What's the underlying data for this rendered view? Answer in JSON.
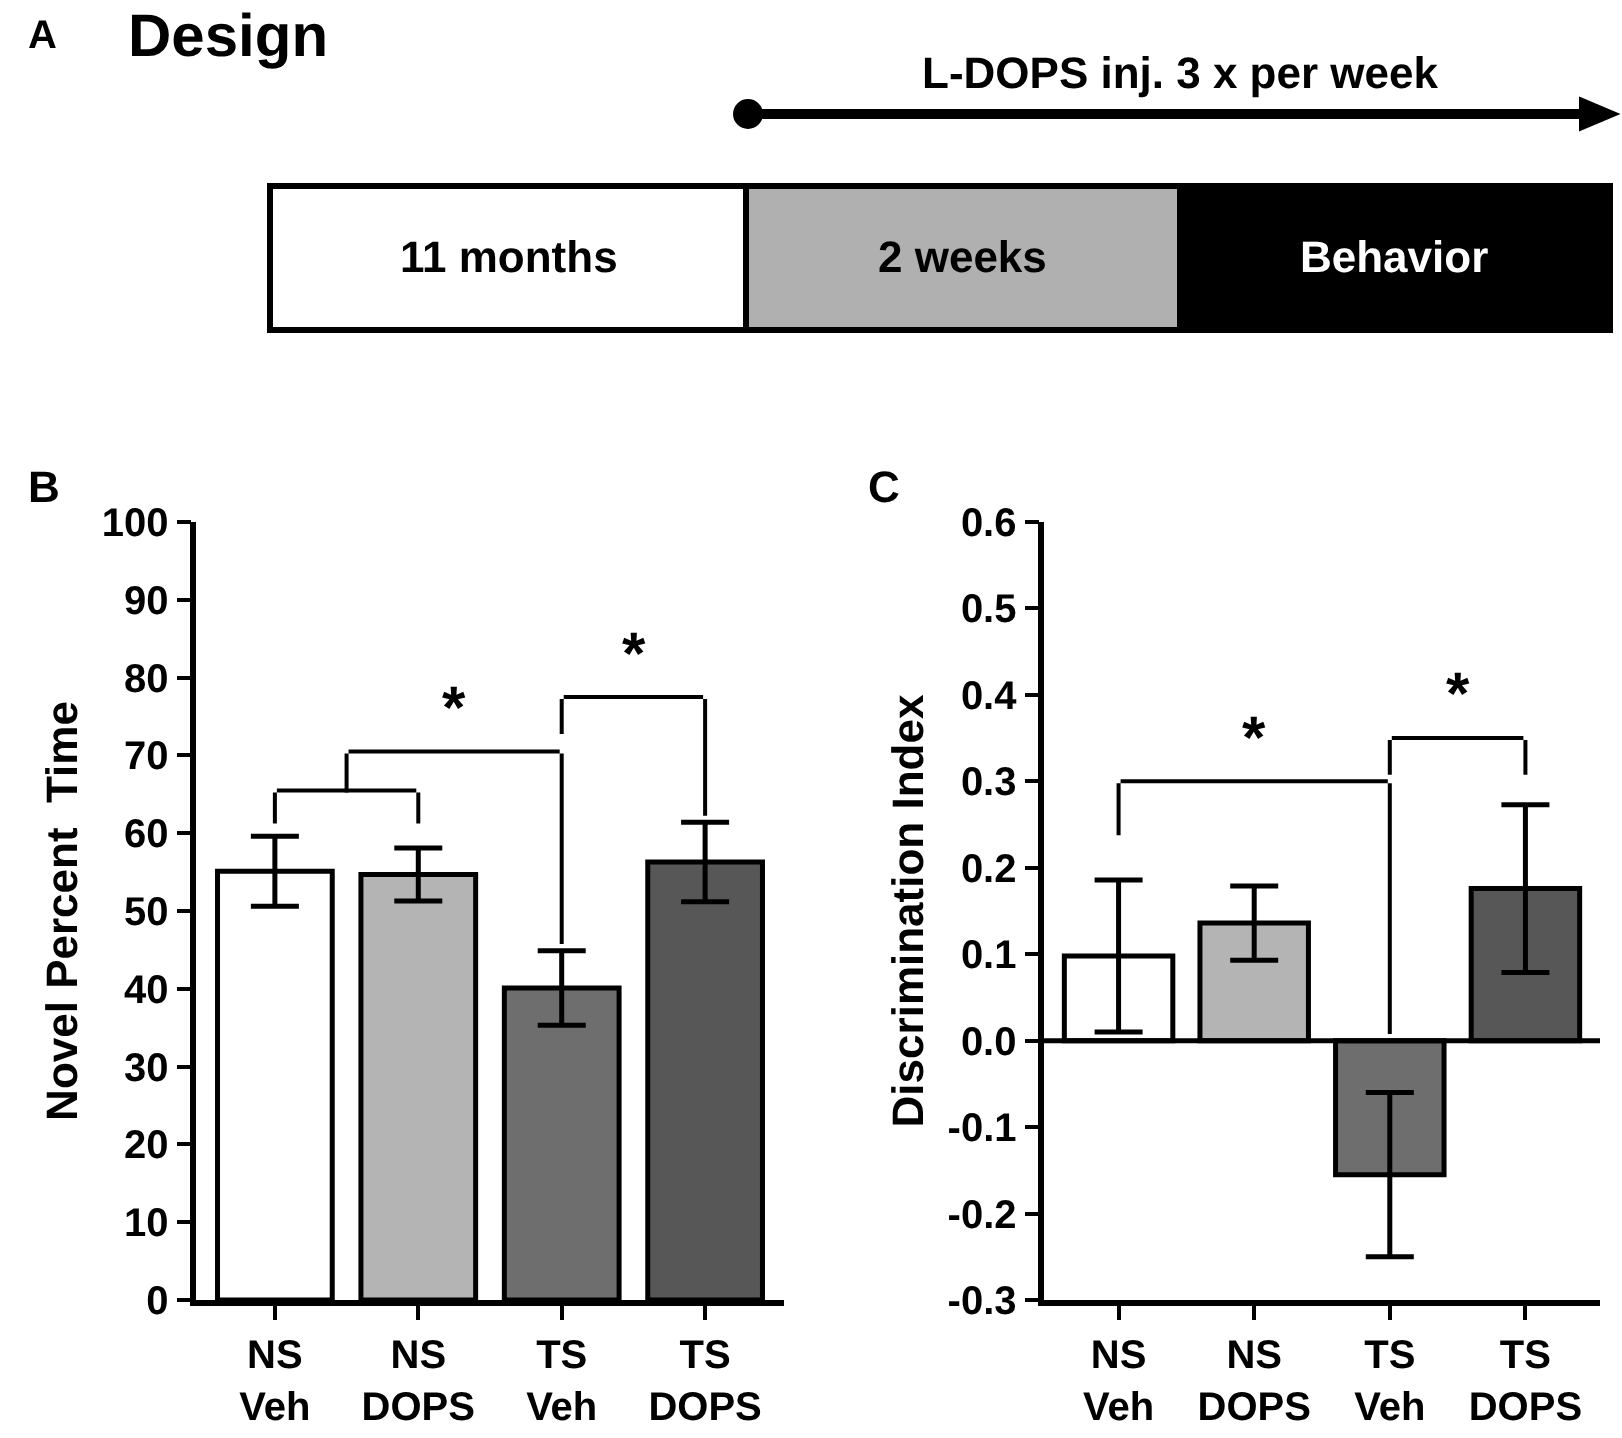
{
  "chart_data": [
    {
      "type": "other",
      "title": "Design",
      "annotations": [
        "A",
        "L-DOPS inj. 3 x per week",
        "11 months",
        "2 weeks",
        "Behavior"
      ]
    },
    {
      "type": "bar",
      "ylabel": "Novel Percent  Time",
      "categories": [
        "NS\nVeh",
        "NS\nDOPS",
        "TS\nVeh",
        "TS\nDOPS"
      ],
      "values": [
        55.1,
        54.7,
        40.1,
        56.3
      ],
      "errors": [
        4.5,
        3.4,
        4.8,
        5.1
      ],
      "colors": [
        "#ffffff",
        "#b4b4b4",
        "#6e6e6e",
        "#575757"
      ],
      "ylim": [
        0,
        100
      ],
      "yticks": [
        0,
        10,
        20,
        30,
        40,
        50,
        60,
        70,
        80,
        90,
        100
      ],
      "annotations": [
        "B",
        "*",
        "*"
      ]
    },
    {
      "type": "bar",
      "ylabel": "Discrimination Index",
      "categories": [
        "NS\nVeh",
        "NS\nDOPS",
        "TS\nVeh",
        "TS\nDOPS"
      ],
      "values": [
        0.098,
        0.136,
        -0.155,
        0.176
      ],
      "errors": [
        0.088,
        0.043,
        0.095,
        0.097
      ],
      "colors": [
        "#ffffff",
        "#b4b4b4",
        "#6e6e6e",
        "#575757"
      ],
      "ylim": [
        -0.3,
        0.6
      ],
      "yticks": [
        {
          "value": -0.3,
          "label": "-0.3"
        },
        {
          "value": -0.2,
          "label": "-0.2"
        },
        {
          "value": -0.1,
          "label": "-0.1"
        },
        {
          "value": 0,
          "label": "0.0"
        },
        {
          "value": 0.1,
          "label": "0.1"
        },
        {
          "value": 0.2,
          "label": "0.2"
        },
        {
          "value": 0.3,
          "label": "0.3"
        },
        {
          "value": 0.4,
          "label": "0.4"
        },
        {
          "value": 0.5,
          "label": "0.5"
        },
        {
          "value": 0.6,
          "label": "0.6"
        }
      ],
      "ref_lines": [
        {
          "axis": "y",
          "value": 0,
          "color": "#000000"
        }
      ],
      "annotations": [
        "C",
        "*",
        "*"
      ]
    }
  ]
}
